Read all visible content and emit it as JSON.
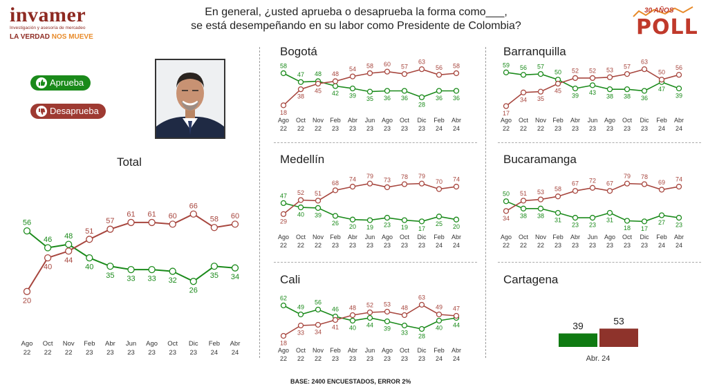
{
  "logo": {
    "word": "invamer",
    "subtitle": "Investigación y asesoría de mercadeo",
    "tag_a": "LA VERDAD ",
    "tag_b": "NOS MUEVE"
  },
  "question": {
    "line1": "En general, ¿usted aprueba o desaprueba la forma como___,",
    "line2": "se está desempeñando en su labor como Presidente de Colombia?"
  },
  "poll_badge": {
    "years": "30 AÑOS",
    "word": "POLL"
  },
  "legend": {
    "approve": "Aprueba",
    "disapprove": "Desaprueba"
  },
  "colors": {
    "approve": "#1a8a1a",
    "disapprove": "#a7463e"
  },
  "months": [
    "Ago",
    "Oct",
    "Nov",
    "Feb",
    "Abr",
    "Jun",
    "Ago",
    "Oct",
    "Dic",
    "Feb",
    "Abr"
  ],
  "years": [
    "22",
    "22",
    "22",
    "23",
    "23",
    "23",
    "23",
    "23",
    "23",
    "24",
    "24"
  ],
  "chart_data": [
    {
      "type": "line",
      "title": "Total",
      "ylim": [
        0,
        100
      ],
      "series": [
        {
          "name": "Aprueba",
          "values": [
            56,
            46,
            48,
            40,
            35,
            33,
            33,
            32,
            26,
            35,
            34
          ]
        },
        {
          "name": "Desaprueba",
          "values": [
            20,
            40,
            44,
            51,
            57,
            61,
            61,
            60,
            66,
            58,
            60
          ]
        }
      ]
    },
    {
      "type": "line",
      "title": "Bogotá",
      "ylim": [
        0,
        100
      ],
      "series": [
        {
          "name": "Aprueba",
          "values": [
            58,
            47,
            48,
            42,
            39,
            35,
            36,
            36,
            28,
            36,
            36
          ]
        },
        {
          "name": "Desaprueba",
          "values": [
            18,
            38,
            45,
            48,
            54,
            58,
            60,
            57,
            63,
            56,
            58
          ]
        }
      ]
    },
    {
      "type": "line",
      "title": "Barranquilla",
      "ylim": [
        0,
        100
      ],
      "series": [
        {
          "name": "Aprueba",
          "values": [
            59,
            56,
            57,
            50,
            39,
            43,
            38,
            38,
            36,
            47,
            39
          ]
        },
        {
          "name": "Desaprueba",
          "values": [
            17,
            34,
            35,
            45,
            52,
            52,
            53,
            57,
            63,
            50,
            56
          ]
        }
      ]
    },
    {
      "type": "line",
      "title": "Medellín",
      "ylim": [
        0,
        100
      ],
      "series": [
        {
          "name": "Aprueba",
          "values": [
            47,
            40,
            39,
            26,
            20,
            19,
            23,
            19,
            17,
            25,
            20
          ]
        },
        {
          "name": "Desaprueba",
          "values": [
            29,
            52,
            51,
            68,
            74,
            79,
            73,
            78,
            79,
            70,
            74
          ]
        }
      ]
    },
    {
      "type": "line",
      "title": "Bucaramanga",
      "ylim": [
        0,
        100
      ],
      "series": [
        {
          "name": "Aprueba",
          "values": [
            50,
            38,
            38,
            31,
            23,
            23,
            31,
            18,
            17,
            27,
            23
          ]
        },
        {
          "name": "Desaprueba",
          "values": [
            34,
            51,
            53,
            58,
            67,
            72,
            67,
            79,
            78,
            69,
            74
          ]
        }
      ]
    },
    {
      "type": "line",
      "title": "Cali",
      "ylim": [
        0,
        100
      ],
      "series": [
        {
          "name": "Aprueba",
          "values": [
            62,
            49,
            56,
            46,
            40,
            44,
            39,
            33,
            28,
            40,
            44
          ]
        },
        {
          "name": "Desaprueba",
          "values": [
            18,
            33,
            34,
            41,
            48,
            52,
            53,
            48,
            63,
            49,
            47
          ]
        }
      ]
    },
    {
      "type": "bar",
      "title": "Cartagena",
      "categories": [
        "Abr. 24"
      ],
      "series": [
        {
          "name": "Aprueba",
          "values": [
            39
          ]
        },
        {
          "name": "Desaprueba",
          "values": [
            53
          ]
        }
      ]
    }
  ],
  "footer": {
    "base": "BASE: 2400 ENCUESTADOS, ERROR 2%"
  }
}
